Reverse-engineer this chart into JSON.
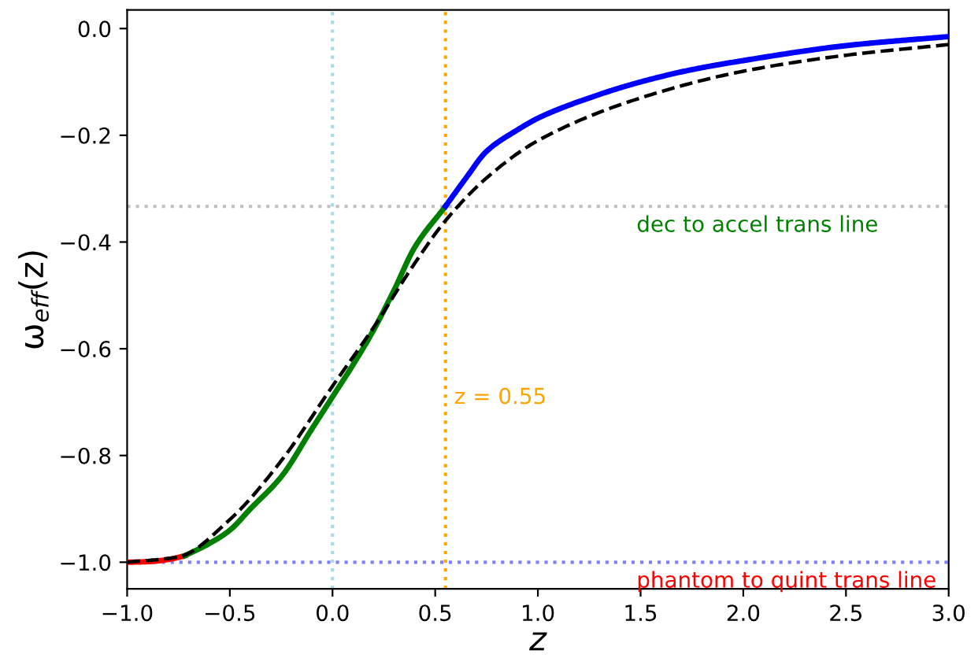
{
  "chart_data": {
    "type": "line",
    "xlabel": "z",
    "ylabel": "ω$_{eff}$(z)",
    "xlim": [
      -1.0,
      3.0
    ],
    "ylim": [
      -1.05,
      0.035
    ],
    "xticks": [
      {
        "value": -1.0,
        "label": "−1.0"
      },
      {
        "value": -0.5,
        "label": "−0.5"
      },
      {
        "value": 0.0,
        "label": "0.0"
      },
      {
        "value": 0.5,
        "label": "0.5"
      },
      {
        "value": 1.0,
        "label": "1.0"
      },
      {
        "value": 1.5,
        "label": "1.5"
      },
      {
        "value": 2.0,
        "label": "2.0"
      },
      {
        "value": 2.5,
        "label": "2.5"
      },
      {
        "value": 3.0,
        "label": "3.0"
      }
    ],
    "yticks": [
      {
        "value": -1.0,
        "label": "−1.0"
      },
      {
        "value": -0.8,
        "label": "−0.8"
      },
      {
        "value": -0.6,
        "label": "−0.6"
      },
      {
        "value": -0.4,
        "label": "−0.4"
      },
      {
        "value": -0.2,
        "label": "−0.2"
      },
      {
        "value": 0.0,
        "label": "0.0"
      }
    ],
    "grid": false,
    "legend": false,
    "series": [
      {
        "color": "#ff0000",
        "line_style": "solid",
        "x": [
          -1.0,
          -0.9,
          -0.8,
          -0.72
        ],
        "values": [
          -1.0,
          -0.999,
          -0.995,
          -0.988
        ]
      },
      {
        "color": "#008000",
        "line_style": "solid",
        "x": [
          -0.72,
          -0.6,
          -0.5,
          -0.4,
          -0.25,
          -0.1,
          0.0,
          0.1,
          0.2,
          0.3,
          0.4,
          0.55
        ],
        "values": [
          -0.988,
          -0.965,
          -0.94,
          -0.9,
          -0.84,
          -0.75,
          -0.69,
          -0.63,
          -0.565,
          -0.49,
          -0.41,
          -0.333
        ]
      },
      {
        "color": "#0000ff",
        "line_style": "solid",
        "x": [
          0.55,
          0.65,
          0.75,
          0.9,
          1.0,
          1.25,
          1.5,
          1.75,
          2.0,
          2.5,
          3.0
        ],
        "values": [
          -0.333,
          -0.28,
          -0.23,
          -0.19,
          -0.168,
          -0.13,
          -0.1,
          -0.077,
          -0.06,
          -0.032,
          -0.015
        ]
      },
      {
        "color": "#000000",
        "line_style": "dashed",
        "x": [
          -1.0,
          -0.75,
          -0.5,
          -0.25,
          0.0,
          0.2,
          0.4,
          0.55,
          0.75,
          1.0,
          1.5,
          2.0,
          2.5,
          3.0
        ],
        "values": [
          -1.0,
          -0.99,
          -0.92,
          -0.81,
          -0.67,
          -0.56,
          -0.44,
          -0.36,
          -0.28,
          -0.21,
          -0.13,
          -0.08,
          -0.05,
          -0.03
        ]
      }
    ],
    "ref_lines": [
      {
        "axis": "y",
        "value": -0.3333,
        "color": "#c0c0c0",
        "line_style": "dotted",
        "label": "dec to accel trans line"
      },
      {
        "axis": "y",
        "value": -1.0,
        "color": "#8080ff",
        "line_style": "dotted",
        "label": "phantom to quint trans line"
      },
      {
        "axis": "x",
        "value": 0.0,
        "color": "#add8e6",
        "line_style": "dotted"
      },
      {
        "axis": "x",
        "value": 0.55,
        "color": "#ffa500",
        "line_style": "dotted",
        "label": "z = 0.55"
      }
    ]
  }
}
